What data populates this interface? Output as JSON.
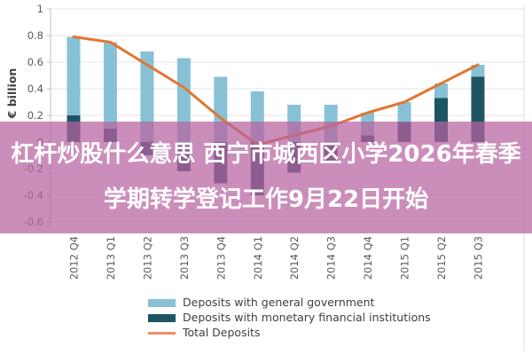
{
  "overlay": {
    "line1": "杠杆炒股什么意思 西宁市城西区小学2026年春季",
    "line2": "学期转学登记工作9月22日开始",
    "band_color": "rgba(183,98,159,0.72)",
    "text_color": "#ffffff"
  },
  "chart_data": {
    "type": "bar",
    "subtype": "stacked-bar-with-line",
    "title": "",
    "xlabel": "",
    "ylabel": "€ billion",
    "categories": [
      "2012 Q4",
      "2013 Q1",
      "2013 Q2",
      "2013 Q3",
      "2013 Q4",
      "2014 Q1",
      "2014 Q2",
      "2014 Q3",
      "2014 Q4",
      "2015 Q1",
      "2015 Q2",
      "2015 Q3"
    ],
    "series": [
      {
        "name": "Deposits with general government",
        "type": "bar",
        "color": "#88c1d5",
        "values": [
          0.59,
          0.65,
          0.68,
          0.63,
          0.49,
          0.38,
          0.28,
          0.28,
          0.17,
          0.15,
          0.11,
          0.09
        ]
      },
      {
        "name": "Deposits with monetary financial institutions",
        "type": "bar",
        "color": "#1d5565",
        "values": [
          0.2,
          0.1,
          -0.1,
          -0.22,
          -0.31,
          -0.4,
          -0.23,
          -0.16,
          0.05,
          0.15,
          0.33,
          0.49
        ]
      },
      {
        "name": "Total Deposits",
        "type": "line",
        "color": "#e2762f",
        "values": [
          0.79,
          0.75,
          0.58,
          0.41,
          0.18,
          -0.02,
          0.05,
          0.12,
          0.22,
          0.3,
          0.44,
          0.58
        ]
      }
    ],
    "y_ticks": [
      1,
      0.8,
      0.6,
      0.4,
      0.2,
      0,
      -0.2,
      -0.4,
      -0.6
    ],
    "y_tick_labels": [
      "1",
      "0.8",
      "0.6",
      "0.4",
      "0.2",
      "0",
      "-0.2",
      "-0.4",
      "-0.6"
    ],
    "ylim": [
      -0.6,
      1.0
    ],
    "grid": true,
    "legend_position": "bottom",
    "axis_text_color": "#595959",
    "grid_color": "#e6e6e6",
    "axis_line_color": "#bfbfbf"
  }
}
